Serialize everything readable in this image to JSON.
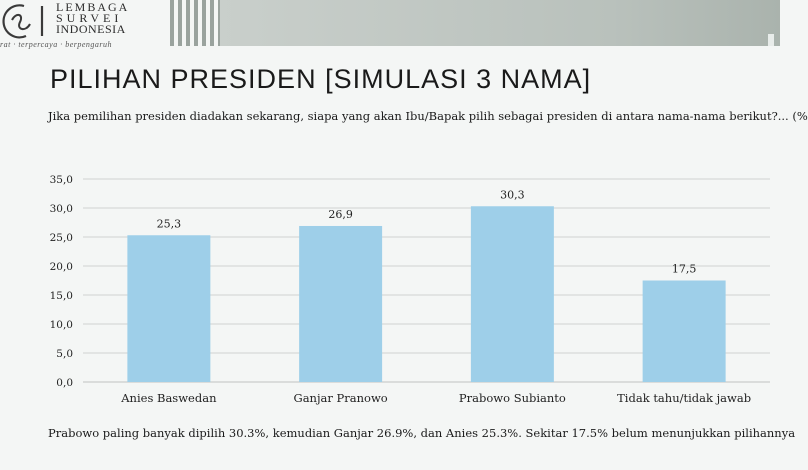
{
  "header": {
    "logo_line1": "LEMBAGA",
    "logo_line2": "SURVEI",
    "logo_line3": "INDONESIA",
    "tagline": "rat · terpercaya · berpengaruh"
  },
  "page_title": "PILIHAN PRESIDEN [SIMULASI 3 NAMA]",
  "question": "Jika pemilihan presiden diadakan sekarang, siapa yang akan Ibu/Bapak pilih sebagai presiden di antara nama-nama berikut?... (%",
  "summary": "Prabowo paling banyak dipilih 30.3%, kemudian Ganjar 26.9%, dan Anies 25.3%. Sekitar 17.5% belum menunjukkan pilihannya",
  "colors": {
    "bar": "#9ecfe9",
    "grid": "#cfd3d1",
    "axis": "#bfc3c1"
  },
  "chart_data": {
    "type": "bar",
    "title": "",
    "xlabel": "",
    "ylabel": "",
    "categories": [
      "Anies Baswedan",
      "Ganjar Pranowo",
      "Prabowo Subianto",
      "Tidak tahu/tidak jawab"
    ],
    "values": [
      25.3,
      26.9,
      30.3,
      17.5
    ],
    "value_labels": [
      "25,3",
      "26,9",
      "30,3",
      "17,5"
    ],
    "ylim": [
      0,
      35
    ],
    "yticks": [
      0,
      5,
      10,
      15,
      20,
      25,
      30,
      35
    ],
    "ytick_labels": [
      "0,0",
      "5,0",
      "10,0",
      "15,0",
      "20,0",
      "25,0",
      "30,0",
      "35,0"
    ],
    "grid": true,
    "legend": "none"
  }
}
